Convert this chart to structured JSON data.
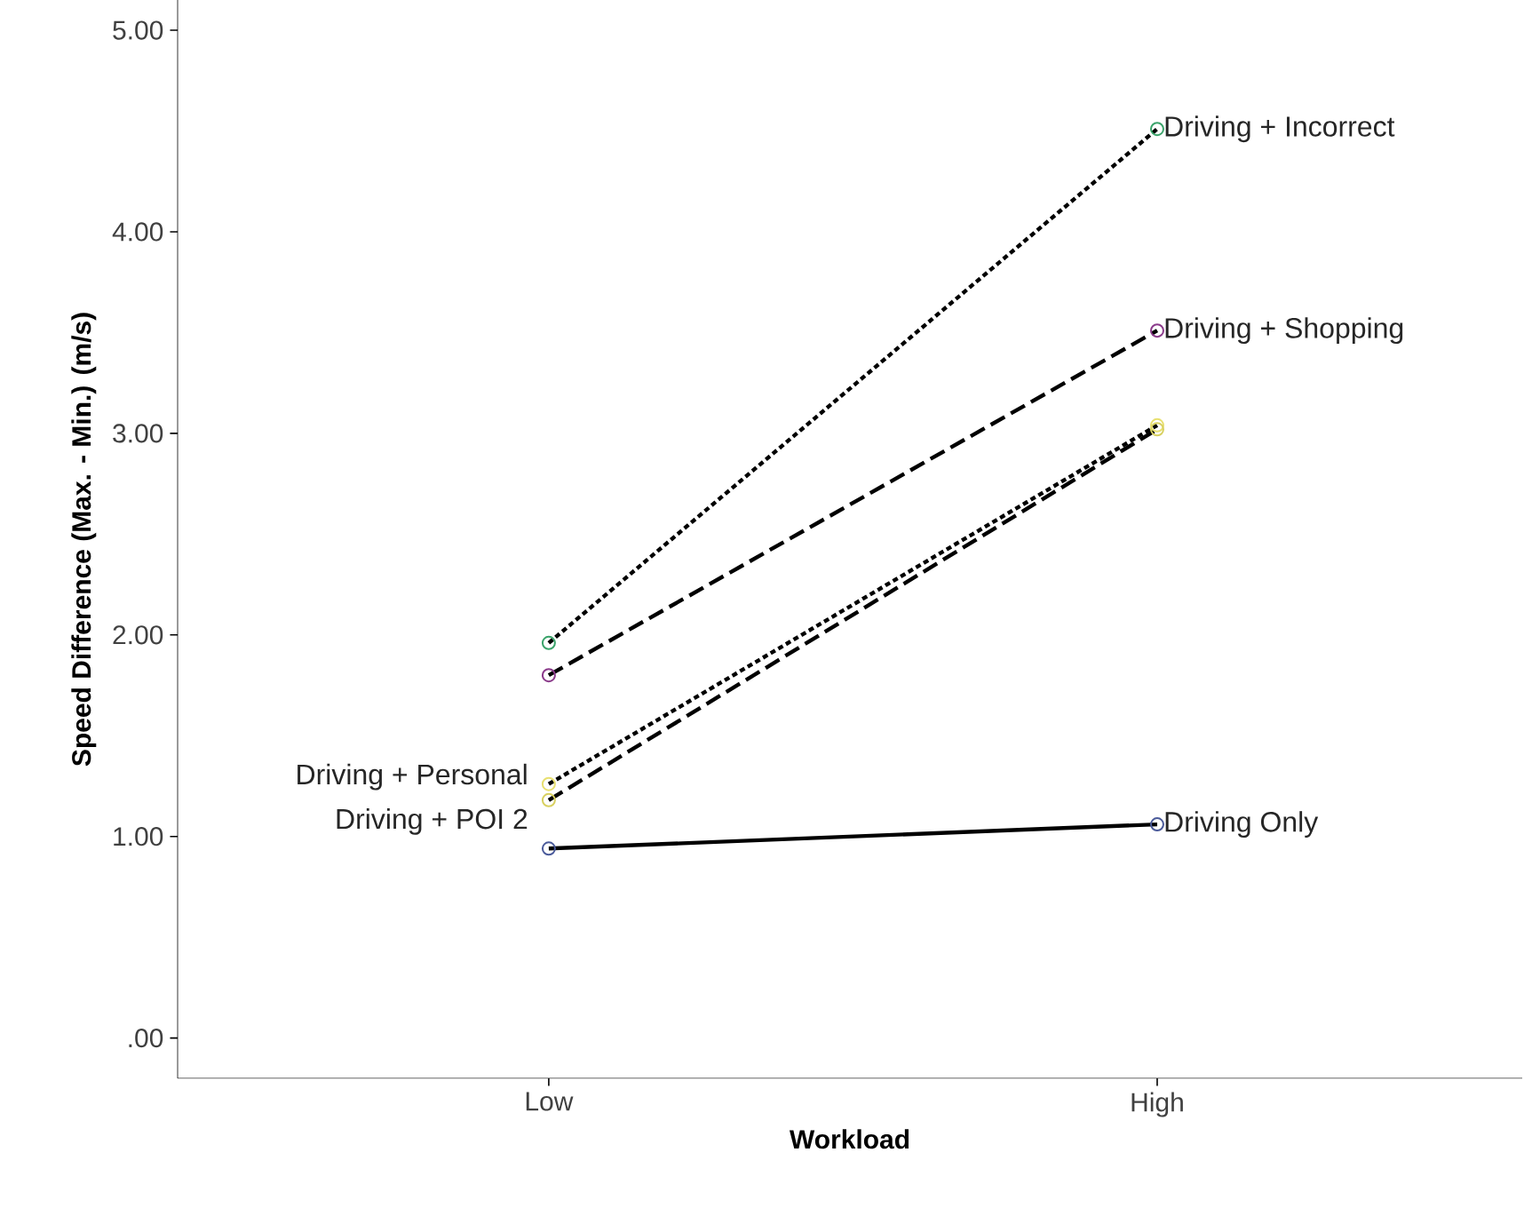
{
  "chart_data": {
    "type": "line",
    "xlabel": "Workload",
    "ylabel": "Speed Difference (Max. - Min.) (m/s)",
    "categories": [
      "Low",
      "High"
    ],
    "series": [
      {
        "name": "Driving + Incorrect",
        "color": "#3aa36a",
        "values": [
          1.96,
          4.51
        ],
        "line_style": "dotted"
      },
      {
        "name": "Driving + Shopping",
        "color": "#8a3a8a",
        "values": [
          1.8,
          3.51
        ],
        "line_style": "dashed"
      },
      {
        "name": "Driving + Personal",
        "color": "#e8e070",
        "values": [
          1.26,
          3.04
        ],
        "line_style": "dotted"
      },
      {
        "name": "Driving + POI 2",
        "color": "#d8d060",
        "values": [
          1.18,
          3.02
        ],
        "line_style": "dashed"
      },
      {
        "name": "Driving Only",
        "color": "#4a5a9a",
        "values": [
          0.94,
          1.06
        ],
        "line_style": "solid"
      }
    ],
    "ylim": [
      -0.2,
      5.15
    ],
    "yticks": [
      {
        "value": 0,
        "label": ".00"
      },
      {
        "value": 1,
        "label": "1.00"
      },
      {
        "value": 2,
        "label": "2.00"
      },
      {
        "value": 3,
        "label": "3.00"
      },
      {
        "value": 4,
        "label": "4.00"
      },
      {
        "value": 5,
        "label": "5.00"
      }
    ],
    "marker": "circle",
    "grid": false
  }
}
